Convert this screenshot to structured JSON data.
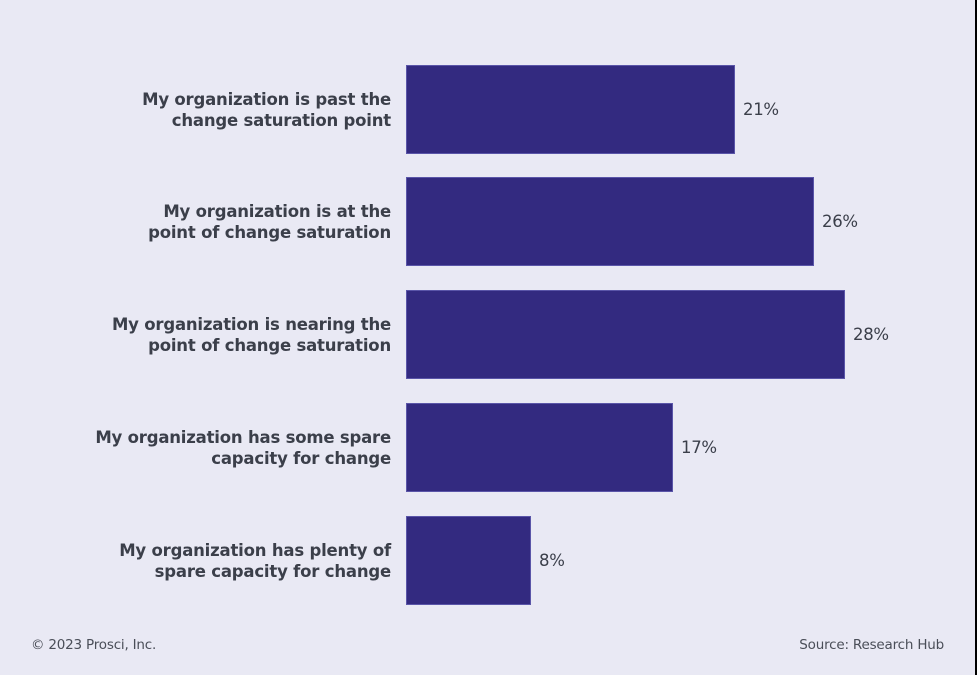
{
  "chart_data": {
    "type": "bar",
    "orientation": "horizontal",
    "title": "",
    "xlabel": "",
    "ylabel": "",
    "categories": [
      "My organization is past the change saturation point",
      "My organization is at the point of change saturation",
      "My organization is nearing the point of change saturation",
      "My organization has some spare capacity for change",
      "My organization has plenty of spare capacity for change"
    ],
    "values": [
      21,
      26,
      28,
      17,
      8
    ],
    "value_labels": [
      "21%",
      "26%",
      "28%",
      "17%",
      "8%"
    ],
    "unit": "%",
    "grid": false,
    "legend": null,
    "bar_color": "#332a80"
  },
  "rows": [
    {
      "line1": "My organization is past the",
      "line2": "change saturation point",
      "value": "21%",
      "pct": 21
    },
    {
      "line1": "My organization is at the",
      "line2": "point of change saturation",
      "value": "26%",
      "pct": 26
    },
    {
      "line1": "My organization is nearing the",
      "line2": "point of change saturation",
      "value": "28%",
      "pct": 28
    },
    {
      "line1": "My organization has some spare",
      "line2": "capacity for change",
      "value": "17%",
      "pct": 17
    },
    {
      "line1": "My organization has plenty of",
      "line2": "spare capacity for change",
      "value": "8%",
      "pct": 8
    }
  ],
  "footer": {
    "copyright": "© 2023 Prosci, Inc.",
    "source": "Source: Research Hub"
  }
}
